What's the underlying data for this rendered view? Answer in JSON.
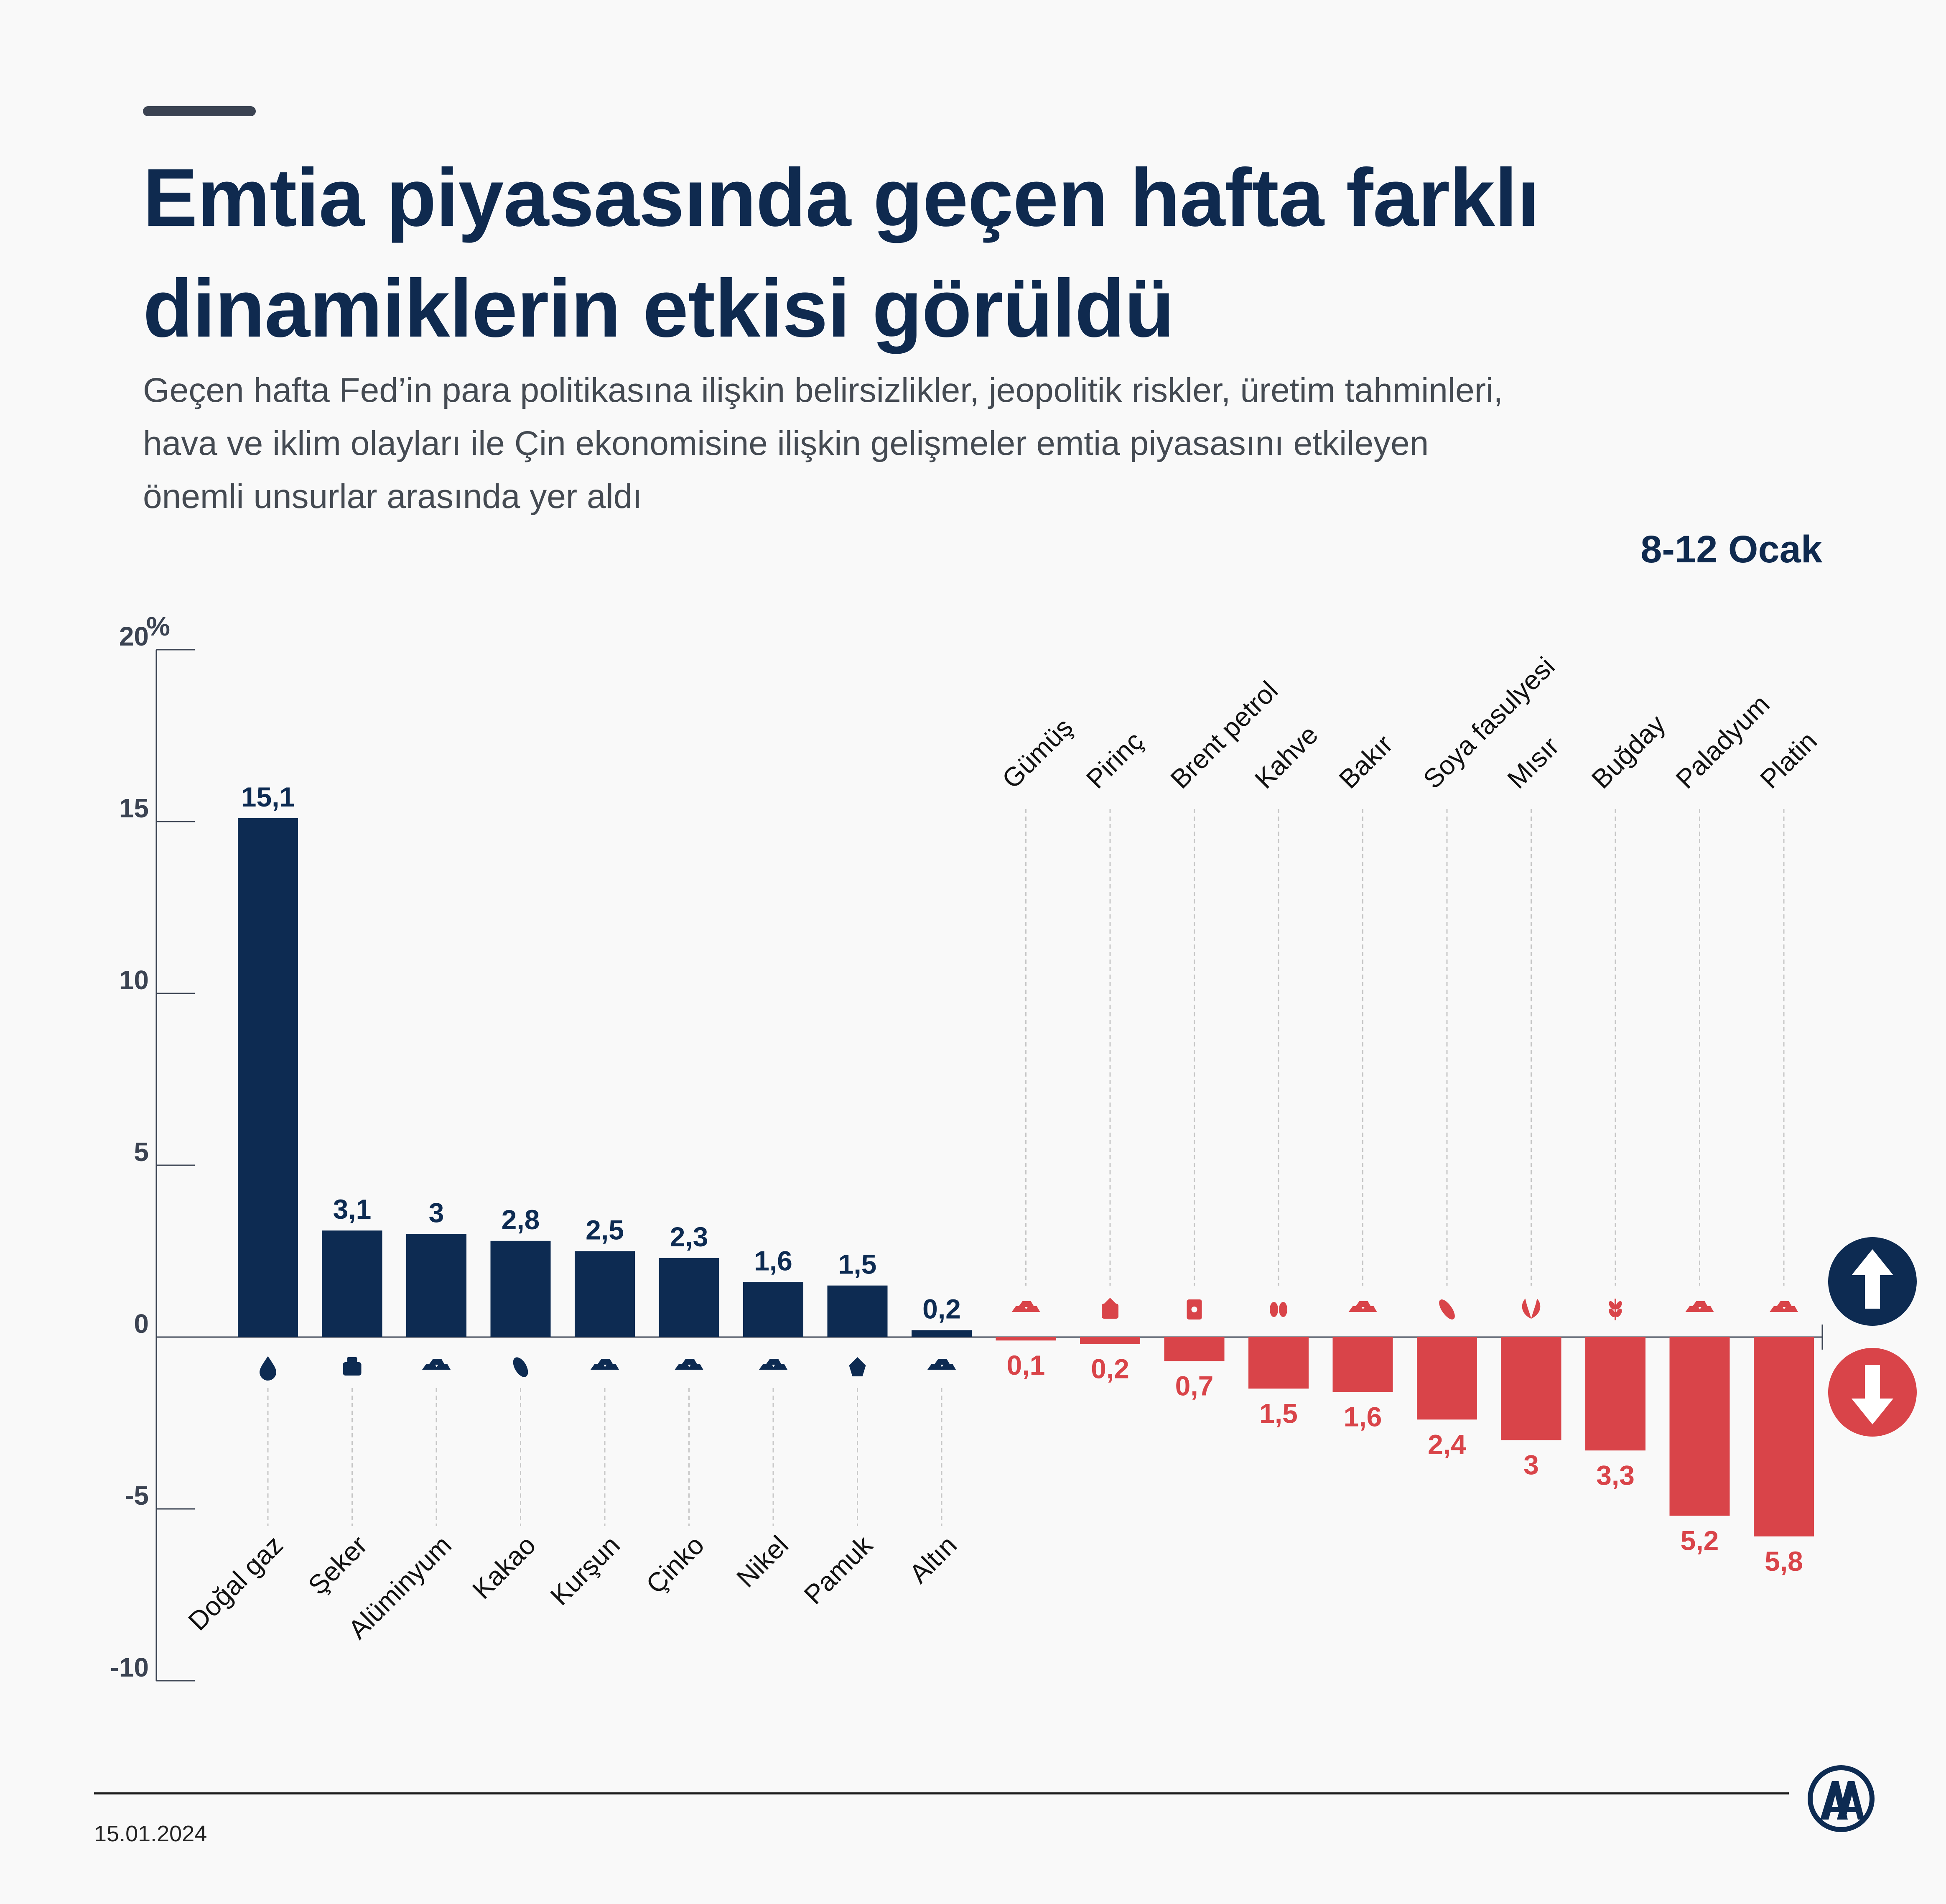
{
  "header": {
    "title": "Emtia piyasasında geçen hafta farklı dinamiklerin etkisi görüldü",
    "subtitle": "Geçen hafta Fed’in para politikasına ilişkin belirsizlikler, jeopolitik riskler, üretim tahminleri, hava ve iklim olayları ile Çin ekonomisine ilişkin gelişmeler emtia piyasasını etkileyen önemli unsurlar arasında yer aldı",
    "date_range": "8-12 Ocak"
  },
  "footer": {
    "date": "15.01.2024"
  },
  "colors": {
    "positive": "#0d2b52",
    "negative": "#d94449",
    "axis": "#3b4352",
    "text_dark": "#0f2a4f"
  },
  "chart_data": {
    "type": "bar",
    "ylabel": "%",
    "ylim": [
      -10,
      20
    ],
    "yticks": [
      20,
      15,
      10,
      5,
      0,
      -5,
      -10
    ],
    "ytick_labels": [
      "20",
      "15",
      "10",
      "5",
      "0",
      "-5",
      "-10"
    ],
    "categories": [
      "Doğal gaz",
      "Şeker",
      "Alüminyum",
      "Kakao",
      "Kurşun",
      "Çinko",
      "Nikel",
      "Pamuk",
      "Altın",
      "Gümüş",
      "Pirinç",
      "Brent petrol",
      "Kahve",
      "Bakır",
      "Soya fasulyesi",
      "Mısır",
      "Buğday",
      "Paladyum",
      "Platin"
    ],
    "values": [
      15.1,
      3.1,
      3,
      2.8,
      2.5,
      2.3,
      1.6,
      1.5,
      0.2,
      -0.1,
      -0.2,
      -0.7,
      -1.5,
      -1.6,
      -2.4,
      -3,
      -3.3,
      -5.2,
      -5.8
    ],
    "value_labels": [
      "15,1",
      "3,1",
      "3",
      "2,8",
      "2,5",
      "2,3",
      "1,6",
      "1,5",
      "0,2",
      "0,1",
      "0,2",
      "0,7",
      "1,5",
      "1,6",
      "2,4",
      "3",
      "3,3",
      "5,2",
      "5,8"
    ],
    "icons": [
      "drop-icon",
      "sack-icon",
      "ingot-icon",
      "cocoa-icon",
      "ingot-icon",
      "ingot-icon",
      "ingot-icon",
      "cotton-icon",
      "ingot-icon",
      "ingot-icon",
      "rice-bag-icon",
      "oil-barrel-icon",
      "coffee-bean-icon",
      "ingot-icon",
      "soybean-icon",
      "corn-icon",
      "wheat-icon",
      "ingot-icon",
      "ingot-icon"
    ],
    "legend": [
      "up-arrow-icon",
      "down-arrow-icon"
    ],
    "grid": false
  }
}
